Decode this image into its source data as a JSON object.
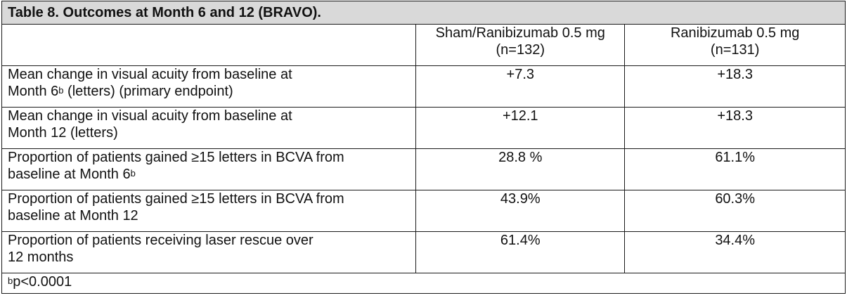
{
  "table": {
    "caption": "Table 8. Outcomes at Month 6 and 12 (BRAVO).",
    "columns": [
      {
        "line1": "",
        "line2": ""
      },
      {
        "line1": "Sham/Ranibizumab 0.5 mg",
        "line2": "(n=132)"
      },
      {
        "line1": "Ranibizumab 0.5 mg",
        "line2": "(n=131)"
      }
    ],
    "rows": [
      {
        "label_line1": "Mean change in visual acuity from baseline at",
        "label_line2_pre": "Month 6",
        "label_sup": "b",
        "label_line2_post": " (letters) (primary endpoint)",
        "sham": "+7.3",
        "ranibizumab": "+18.3"
      },
      {
        "label_line1": "Mean change in visual acuity from baseline at",
        "label_line2_pre": "Month 12 (letters)",
        "label_sup": "",
        "label_line2_post": "",
        "sham": "+12.1",
        "ranibizumab": "+18.3"
      },
      {
        "label_line1": "Proportion of patients gained ≥15 letters in BCVA from",
        "label_line2_pre": "baseline at Month 6",
        "label_sup": "b",
        "label_line2_post": "",
        "sham": "28.8 %",
        "ranibizumab": "61.1%"
      },
      {
        "label_line1": "Proportion of patients gained ≥15 letters in BCVA from",
        "label_line2_pre": "baseline at Month 12",
        "label_sup": "",
        "label_line2_post": "",
        "sham": "43.9%",
        "ranibizumab": "60.3%"
      },
      {
        "label_line1": "Proportion of patients receiving laser rescue over",
        "label_line2_pre": "12 months",
        "label_sup": "",
        "label_line2_post": "",
        "sham": "61.4%",
        "ranibizumab": "34.4%"
      }
    ],
    "footnote": {
      "sup": "b",
      "text": "p<0.0001"
    }
  }
}
